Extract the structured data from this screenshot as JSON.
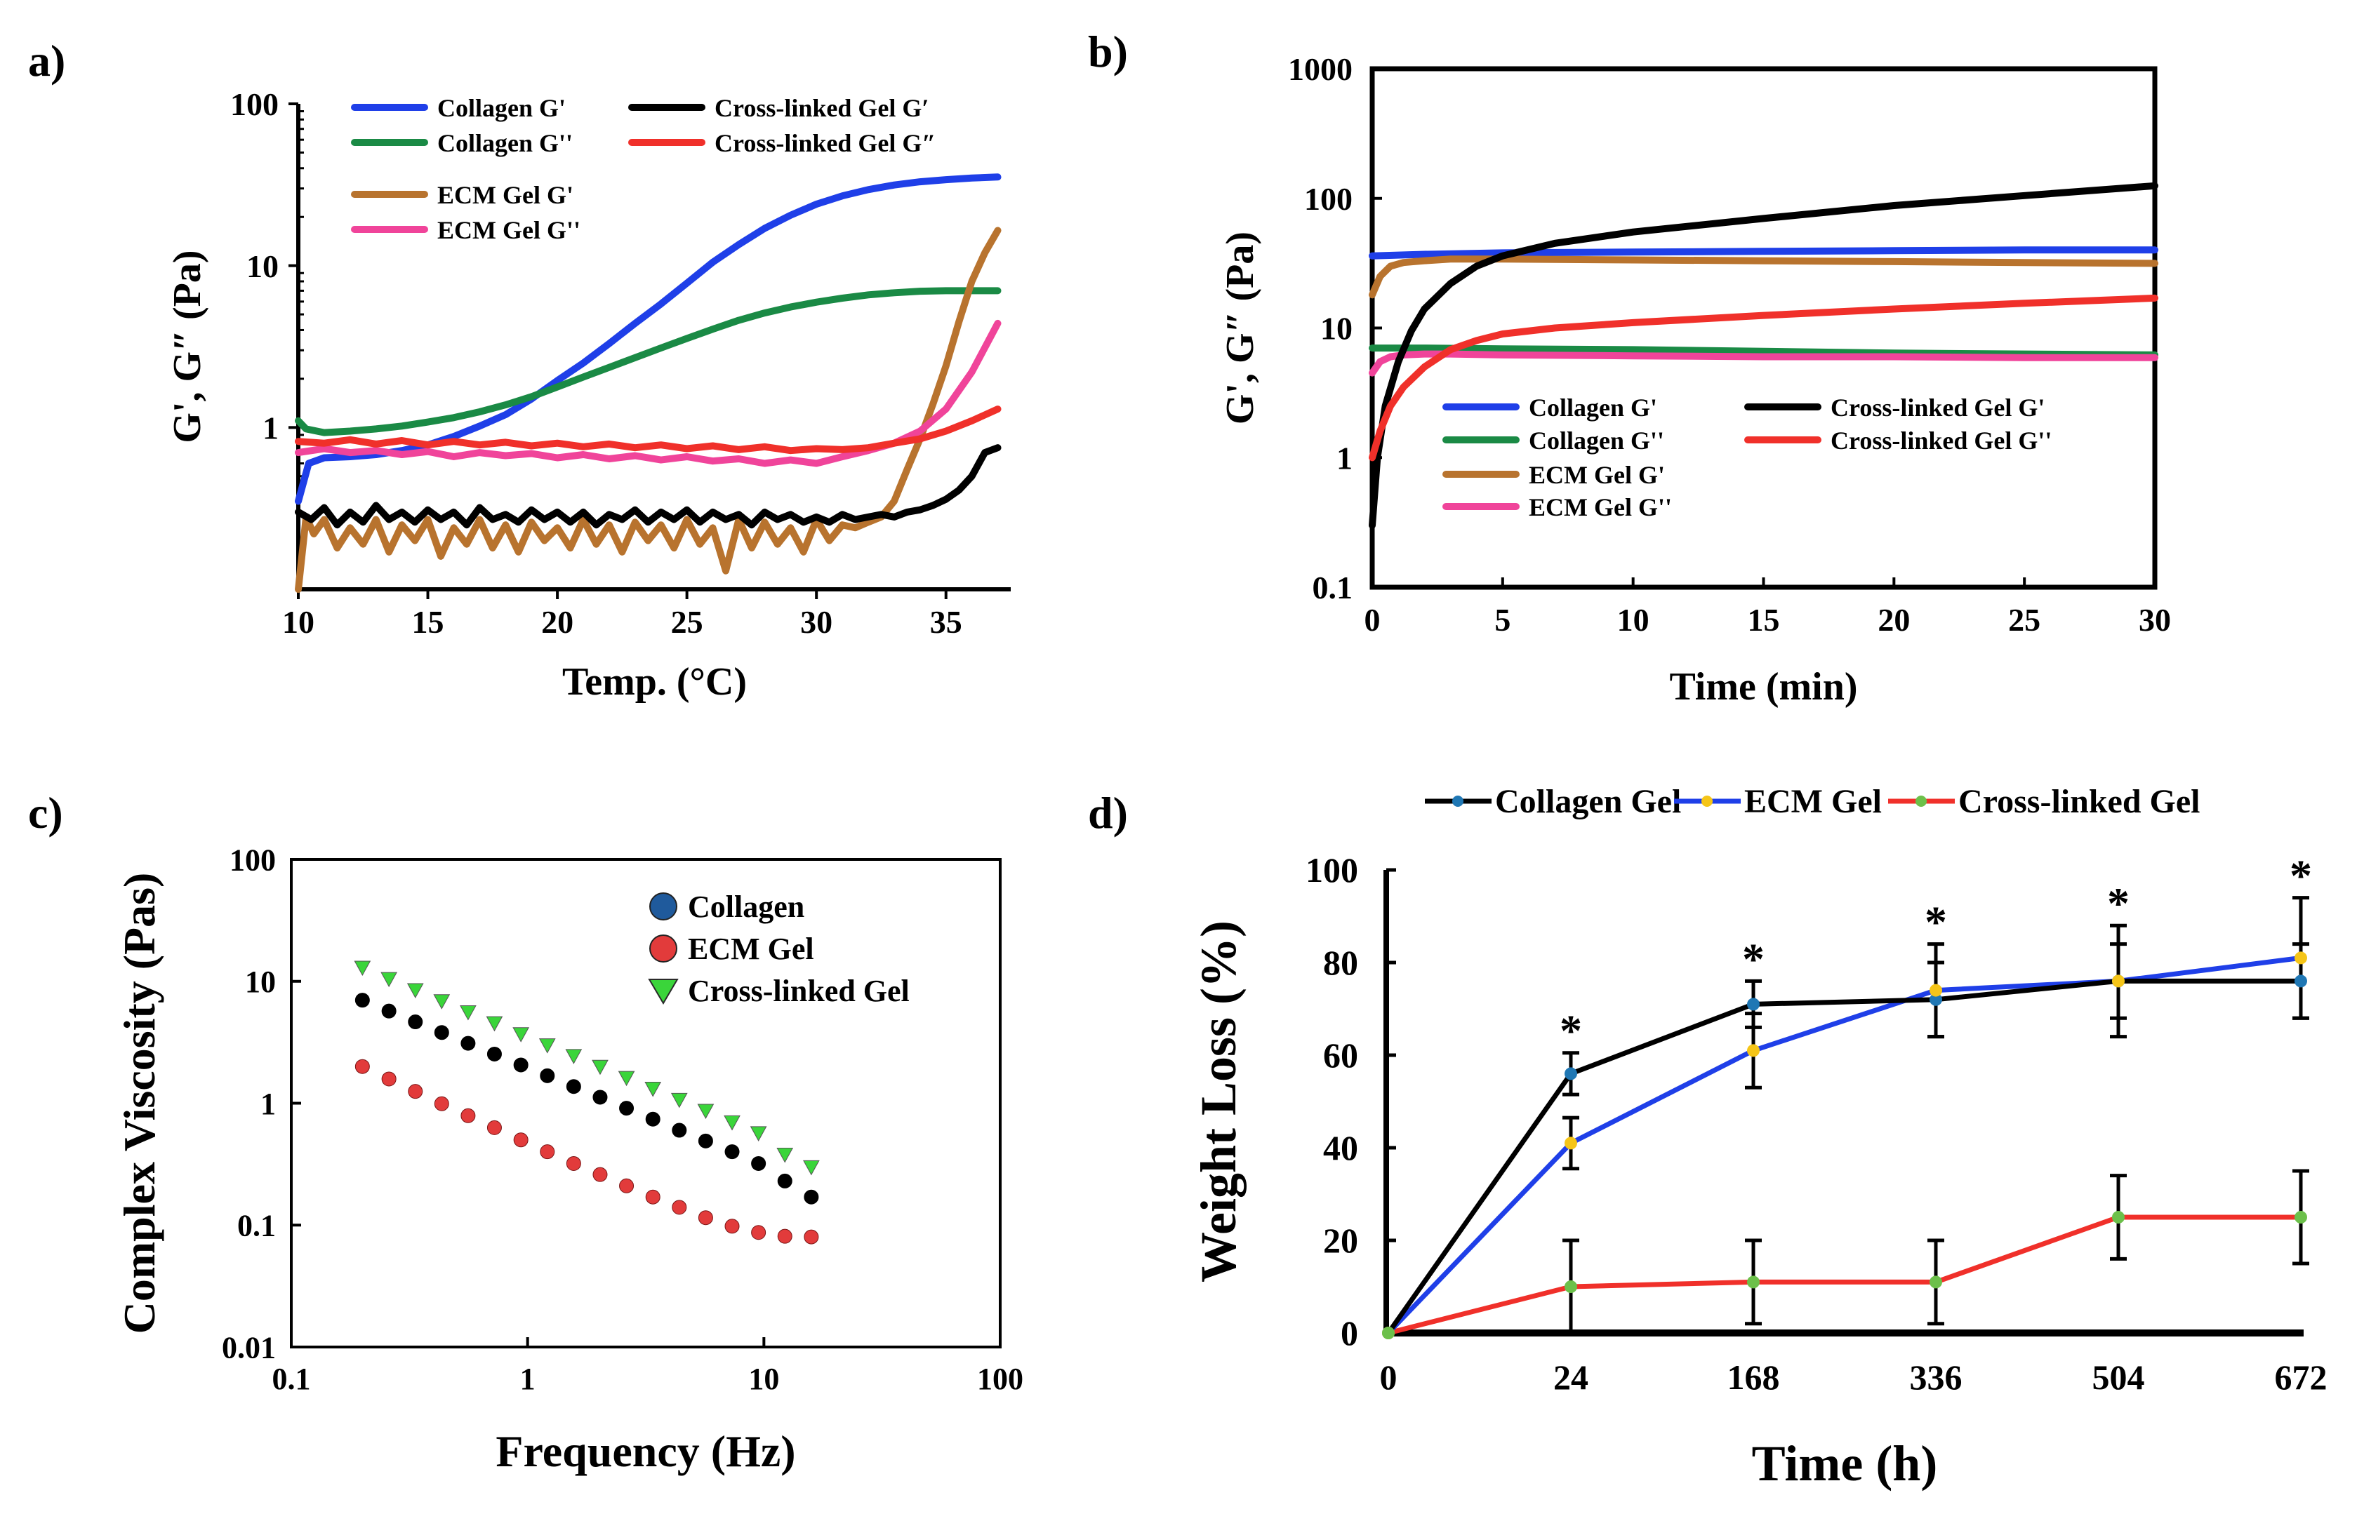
{
  "panels": {
    "a": {
      "label": "a)"
    },
    "b": {
      "label": "b)"
    },
    "c": {
      "label": "c)"
    },
    "d": {
      "label": "d)"
    }
  },
  "colors": {
    "collagen_gp": "#1f3fe8",
    "collagen_gpp": "#1a8a45",
    "ecm_gp": "#b8732e",
    "ecm_gpp": "#f0449a",
    "xl_gp": "#000000",
    "xl_gpp": "#f0302a",
    "c_collagen": "#1f5a9c",
    "c_ecm": "#e23b3b",
    "c_xl": "#3ad53a",
    "d_collagen": "#000000",
    "d_ecm": "#1f3fe8",
    "d_xl": "#f0302a",
    "d_collagen_marker": "#1f77b4",
    "d_ecm_marker": "#f5c518",
    "d_xl_marker": "#6cc04a"
  },
  "chart_data": [
    {
      "id": "a",
      "type": "line",
      "xlabel": "Temp. (°C)",
      "ylabel": "G', G″ (Pa)",
      "xscale": "linear",
      "yscale": "log",
      "xlim": [
        10,
        37.5
      ],
      "ylim": [
        0.1,
        100
      ],
      "xticks": [
        10,
        15,
        20,
        25,
        30,
        35
      ],
      "xtick_labels": [
        "10",
        "15",
        "20",
        "25",
        "30",
        "35"
      ],
      "yticks": [
        1,
        10,
        100
      ],
      "ytick_labels": [
        "1",
        "10",
        "100"
      ],
      "legend_position": "top",
      "series": [
        {
          "name": "Collagen G'",
          "color_key": "collagen_gp",
          "x": [
            10,
            10.4,
            11,
            12,
            13,
            14,
            15,
            16,
            17,
            18,
            19,
            20,
            21,
            22,
            23,
            24,
            25,
            26,
            27,
            28,
            29,
            30,
            31,
            32,
            33,
            34,
            35,
            36,
            37
          ],
          "y": [
            0.35,
            0.6,
            0.65,
            0.66,
            0.68,
            0.72,
            0.78,
            0.88,
            1.02,
            1.2,
            1.5,
            1.95,
            2.5,
            3.3,
            4.4,
            5.8,
            7.8,
            10.5,
            13.5,
            17.0,
            20.5,
            24.0,
            27.0,
            29.5,
            31.5,
            33.0,
            34.0,
            34.8,
            35.3
          ]
        },
        {
          "name": "Collagen G''",
          "color_key": "collagen_gpp",
          "x": [
            10,
            10.3,
            11,
            12,
            13,
            14,
            15,
            16,
            17,
            18,
            19,
            20,
            21,
            22,
            23,
            24,
            25,
            26,
            27,
            28,
            29,
            30,
            31,
            32,
            33,
            34,
            35,
            36,
            37
          ],
          "y": [
            1.1,
            0.98,
            0.93,
            0.95,
            0.98,
            1.02,
            1.08,
            1.15,
            1.25,
            1.38,
            1.55,
            1.78,
            2.05,
            2.35,
            2.7,
            3.1,
            3.55,
            4.05,
            4.6,
            5.1,
            5.55,
            5.95,
            6.3,
            6.6,
            6.8,
            6.95,
            7.0,
            7.0,
            7.0
          ]
        },
        {
          "name": "ECM Gel G'",
          "color_key": "ecm_gp",
          "x": [
            10,
            10.3,
            10.6,
            11,
            11.5,
            12,
            12.5,
            13,
            13.5,
            14,
            14.5,
            15,
            15.5,
            16,
            16.5,
            17,
            17.5,
            18,
            18.5,
            19,
            19.5,
            20,
            20.5,
            21,
            21.5,
            22,
            22.5,
            23,
            23.5,
            24,
            24.5,
            25,
            25.5,
            26,
            26.5,
            27,
            27.5,
            28,
            28.5,
            29,
            29.5,
            30,
            30.5,
            31,
            31.5,
            32,
            32.5,
            33,
            33.5,
            34,
            34.5,
            35,
            35.5,
            36,
            36.5,
            37
          ],
          "y": [
            0.1,
            0.28,
            0.22,
            0.27,
            0.18,
            0.24,
            0.19,
            0.27,
            0.17,
            0.25,
            0.2,
            0.27,
            0.16,
            0.24,
            0.19,
            0.27,
            0.18,
            0.25,
            0.17,
            0.26,
            0.2,
            0.24,
            0.18,
            0.27,
            0.19,
            0.25,
            0.17,
            0.26,
            0.2,
            0.25,
            0.18,
            0.27,
            0.19,
            0.24,
            0.13,
            0.27,
            0.18,
            0.26,
            0.19,
            0.24,
            0.17,
            0.27,
            0.2,
            0.25,
            0.24,
            0.26,
            0.28,
            0.35,
            0.55,
            0.85,
            1.4,
            2.4,
            4.5,
            8.0,
            12.0,
            16.5
          ]
        },
        {
          "name": "ECM Gel G''",
          "color_key": "ecm_gpp",
          "x": [
            10,
            11,
            12,
            13,
            14,
            15,
            16,
            17,
            18,
            19,
            20,
            21,
            22,
            23,
            24,
            25,
            26,
            27,
            28,
            29,
            30,
            31,
            32,
            33,
            34,
            35,
            36,
            37
          ],
          "y": [
            0.7,
            0.74,
            0.7,
            0.72,
            0.68,
            0.71,
            0.66,
            0.7,
            0.67,
            0.69,
            0.65,
            0.68,
            0.64,
            0.67,
            0.63,
            0.66,
            0.62,
            0.64,
            0.6,
            0.63,
            0.6,
            0.66,
            0.72,
            0.8,
            0.95,
            1.3,
            2.2,
            4.4
          ]
        },
        {
          "name": "Cross-linked Gel G′",
          "color_key": "xl_gp",
          "x": [
            10,
            10.5,
            11,
            11.5,
            12,
            12.5,
            13,
            13.5,
            14,
            14.5,
            15,
            15.5,
            16,
            16.5,
            17,
            17.5,
            18,
            18.5,
            19,
            19.5,
            20,
            20.5,
            21,
            21.5,
            22,
            22.5,
            23,
            23.5,
            24,
            24.5,
            25,
            25.5,
            26,
            26.5,
            27,
            27.5,
            28,
            28.5,
            29,
            29.5,
            30,
            30.5,
            31,
            31.5,
            32,
            32.5,
            33,
            33.5,
            34,
            34.5,
            35,
            35.5,
            36,
            36.5,
            37
          ],
          "y": [
            0.3,
            0.27,
            0.32,
            0.25,
            0.3,
            0.26,
            0.33,
            0.27,
            0.3,
            0.26,
            0.31,
            0.27,
            0.3,
            0.25,
            0.32,
            0.27,
            0.29,
            0.26,
            0.31,
            0.27,
            0.3,
            0.26,
            0.3,
            0.25,
            0.29,
            0.27,
            0.31,
            0.26,
            0.3,
            0.27,
            0.31,
            0.26,
            0.3,
            0.27,
            0.29,
            0.25,
            0.3,
            0.27,
            0.29,
            0.26,
            0.28,
            0.26,
            0.29,
            0.27,
            0.28,
            0.29,
            0.28,
            0.3,
            0.31,
            0.33,
            0.36,
            0.41,
            0.5,
            0.7,
            0.75
          ]
        },
        {
          "name": "Cross-linked Gel G″",
          "color_key": "xl_gpp",
          "x": [
            10,
            11,
            12,
            13,
            14,
            15,
            16,
            17,
            18,
            19,
            20,
            21,
            22,
            23,
            24,
            25,
            26,
            27,
            28,
            29,
            30,
            31,
            32,
            33,
            34,
            35,
            36,
            37
          ],
          "y": [
            0.82,
            0.8,
            0.84,
            0.79,
            0.83,
            0.78,
            0.82,
            0.78,
            0.81,
            0.77,
            0.8,
            0.76,
            0.79,
            0.75,
            0.78,
            0.74,
            0.77,
            0.73,
            0.76,
            0.72,
            0.74,
            0.73,
            0.75,
            0.8,
            0.85,
            0.95,
            1.1,
            1.3
          ]
        }
      ]
    },
    {
      "id": "b",
      "type": "line",
      "xlabel": "Time (min)",
      "ylabel": "G', G″ (Pa)",
      "xscale": "linear",
      "yscale": "log",
      "xlim": [
        0,
        30
      ],
      "ylim": [
        0.1,
        1000
      ],
      "xticks": [
        0,
        5,
        10,
        15,
        20,
        25,
        30
      ],
      "xtick_labels": [
        "0",
        "5",
        "10",
        "15",
        "20",
        "25",
        "30"
      ],
      "yticks": [
        0.1,
        1,
        10,
        100,
        1000
      ],
      "ytick_labels": [
        "0.1",
        "1",
        "10",
        "100",
        "1000"
      ],
      "legend_position": "center",
      "series": [
        {
          "name": "Collagen G'",
          "color_key": "collagen_gp",
          "x": [
            0,
            2,
            5,
            10,
            15,
            20,
            25,
            30
          ],
          "y": [
            36,
            37,
            38,
            38.5,
            39,
            39.5,
            40,
            40
          ]
        },
        {
          "name": "Collagen G''",
          "color_key": "collagen_gpp",
          "x": [
            0,
            2,
            5,
            10,
            15,
            20,
            25,
            30
          ],
          "y": [
            7.0,
            7.0,
            6.9,
            6.8,
            6.6,
            6.4,
            6.3,
            6.2
          ]
        },
        {
          "name": "ECM Gel G'",
          "color_key": "ecm_gp",
          "x": [
            0,
            0.3,
            0.7,
            1.2,
            2,
            3,
            5,
            10,
            15,
            20,
            25,
            30
          ],
          "y": [
            18,
            25,
            30,
            32,
            33,
            34,
            34,
            33.5,
            33,
            32.5,
            32,
            31.5
          ]
        },
        {
          "name": "ECM Gel G''",
          "color_key": "ecm_gpp",
          "x": [
            0,
            0.3,
            0.7,
            1.2,
            2,
            3,
            5,
            10,
            15,
            20,
            25,
            30
          ],
          "y": [
            4.5,
            5.5,
            6.0,
            6.2,
            6.3,
            6.3,
            6.2,
            6.1,
            6.0,
            6.0,
            5.9,
            5.9
          ]
        },
        {
          "name": "Cross-linked Gel G'",
          "color_key": "xl_gp",
          "x": [
            0,
            0.2,
            0.5,
            1,
            1.5,
            2,
            3,
            4,
            5,
            7,
            10,
            15,
            20,
            25,
            30
          ],
          "y": [
            0.3,
            1.0,
            2.5,
            5.5,
            9.5,
            14,
            22,
            30,
            36,
            45,
            55,
            70,
            88,
            105,
            125
          ]
        },
        {
          "name": "Cross-linked Gel G''",
          "color_key": "xl_gpp",
          "x": [
            0,
            0.3,
            0.7,
            1.2,
            2,
            3,
            4,
            5,
            7,
            10,
            15,
            20,
            25,
            30
          ],
          "y": [
            1.0,
            1.6,
            2.5,
            3.5,
            5.0,
            6.8,
            8.0,
            9.0,
            10.0,
            11.0,
            12.5,
            14.0,
            15.5,
            17.0
          ]
        }
      ]
    },
    {
      "id": "c",
      "type": "scatter",
      "xlabel": "Frequency (Hz)",
      "ylabel": "Complex Viscosity (Pas)",
      "xscale": "log",
      "yscale": "log",
      "xlim": [
        0.1,
        100
      ],
      "ylim": [
        0.01,
        100
      ],
      "xticks": [
        0.1,
        1,
        10,
        100
      ],
      "xtick_labels": [
        "0.1",
        "1",
        "10",
        "100"
      ],
      "yticks": [
        0.01,
        0.1,
        1,
        10,
        100
      ],
      "ytick_labels": [
        "0.01",
        "0.1",
        "1",
        "10",
        "100"
      ],
      "legend_position": "top-right",
      "legend": [
        "Collagen",
        "ECM Gel",
        "Cross-linked Gel"
      ],
      "x": [
        0.2,
        0.259,
        0.335,
        0.433,
        0.56,
        0.724,
        0.937,
        1.212,
        1.567,
        2.027,
        2.621,
        3.391,
        4.385,
        5.671,
        7.335,
        9.487,
        12.27,
        15.87
      ],
      "series": [
        {
          "name": "Collagen",
          "color_key": "xl_gp",
          "marker": "circle",
          "y": [
            7.0,
            5.7,
            4.65,
            3.8,
            3.1,
            2.53,
            2.06,
            1.68,
            1.37,
            1.12,
            0.91,
            0.74,
            0.6,
            0.49,
            0.4,
            0.32,
            0.23,
            0.17
          ]
        },
        {
          "name": "ECM Gel",
          "color_key": "c_ecm",
          "marker": "circle",
          "y": [
            2.0,
            1.58,
            1.25,
            0.99,
            0.79,
            0.63,
            0.5,
            0.4,
            0.32,
            0.26,
            0.21,
            0.17,
            0.14,
            0.115,
            0.098,
            0.087,
            0.081,
            0.08
          ]
        },
        {
          "name": "Cross-linked Gel",
          "color_key": "c_xl",
          "marker": "triangle-down",
          "y": [
            13.0,
            10.5,
            8.5,
            6.9,
            5.6,
            4.55,
            3.7,
            3.0,
            2.45,
            2.0,
            1.62,
            1.32,
            1.07,
            0.87,
            0.7,
            0.57,
            0.38,
            0.3
          ]
        }
      ]
    },
    {
      "id": "d",
      "type": "line",
      "xlabel": "Time (h)",
      "ylabel": "Weight Loss (%)",
      "categories": [
        "0",
        "24",
        "168",
        "336",
        "504",
        "672"
      ],
      "ylim": [
        0,
        100
      ],
      "yticks": [
        0,
        20,
        40,
        60,
        80,
        100
      ],
      "ytick_labels": [
        "0",
        "20",
        "40",
        "60",
        "80",
        "100"
      ],
      "legend_position": "top",
      "significance": [
        "",
        "*",
        "*",
        "*",
        "*",
        "*"
      ],
      "series": [
        {
          "name": "Collagen Gel",
          "color_key": "d_collagen",
          "marker_color_key": "d_collagen_marker",
          "values": [
            0,
            56,
            71,
            72,
            76,
            76
          ],
          "error": [
            0,
            4.5,
            5,
            8,
            8,
            8
          ]
        },
        {
          "name": "ECM Gel",
          "color_key": "d_ecm",
          "marker_color_key": "d_ecm_marker",
          "values": [
            0,
            41,
            61,
            74,
            76,
            81
          ],
          "error": [
            0,
            5.5,
            8,
            10,
            12,
            13
          ]
        },
        {
          "name": "Cross-linked Gel",
          "color_key": "d_xl",
          "marker_color_key": "d_xl_marker",
          "values": [
            0,
            10,
            11,
            11,
            25,
            25
          ],
          "error": [
            0,
            10,
            9,
            9,
            9,
            10
          ]
        }
      ]
    }
  ]
}
